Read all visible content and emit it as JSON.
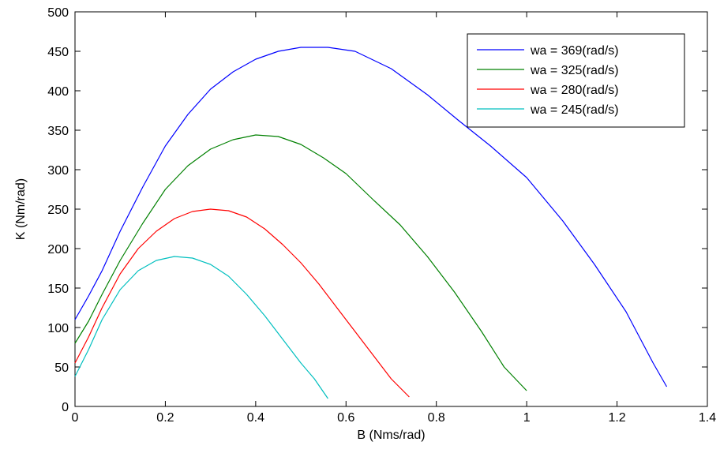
{
  "chart_data": {
    "type": "line",
    "title": "",
    "xlabel": "B (Nms/rad)",
    "ylabel": "K (Nm/rad)",
    "xlim": [
      0,
      1.4
    ],
    "ylim": [
      0,
      500
    ],
    "xticks": [
      0,
      0.2,
      0.4,
      0.6,
      0.8,
      1,
      1.2,
      1.4
    ],
    "xtick_labels": [
      "0",
      "0.2",
      "0.4",
      "0.6",
      "0.8",
      "1",
      "1.2",
      "1.4"
    ],
    "yticks": [
      0,
      50,
      100,
      150,
      200,
      250,
      300,
      350,
      400,
      450,
      500
    ],
    "ytick_labels": [
      "0",
      "50",
      "100",
      "150",
      "200",
      "250",
      "300",
      "350",
      "400",
      "450",
      "500"
    ],
    "grid": false,
    "legend_position": "top-right",
    "series": [
      {
        "name": "wa = 369(rad/s)",
        "color": "#0000ff",
        "x": [
          0.0,
          0.03,
          0.06,
          0.1,
          0.15,
          0.2,
          0.25,
          0.3,
          0.35,
          0.4,
          0.45,
          0.5,
          0.56,
          0.62,
          0.7,
          0.78,
          0.85,
          0.92,
          1.0,
          1.08,
          1.15,
          1.22,
          1.28,
          1.31
        ],
        "y": [
          110,
          140,
          172,
          222,
          278,
          330,
          370,
          402,
          424,
          440,
          450,
          455,
          455,
          450,
          428,
          395,
          362,
          330,
          290,
          235,
          180,
          120,
          55,
          25
        ]
      },
      {
        "name": "wa = 325(rad/s)",
        "color": "#008000",
        "x": [
          0.0,
          0.03,
          0.06,
          0.1,
          0.15,
          0.2,
          0.25,
          0.3,
          0.35,
          0.4,
          0.45,
          0.5,
          0.55,
          0.6,
          0.66,
          0.72,
          0.78,
          0.84,
          0.9,
          0.95,
          1.0
        ],
        "y": [
          80,
          108,
          142,
          185,
          232,
          275,
          305,
          326,
          338,
          344,
          342,
          332,
          315,
          295,
          262,
          230,
          190,
          145,
          95,
          50,
          20
        ]
      },
      {
        "name": "wa = 280(rad/s)",
        "color": "#ff0000",
        "x": [
          0.0,
          0.03,
          0.06,
          0.1,
          0.14,
          0.18,
          0.22,
          0.26,
          0.3,
          0.34,
          0.38,
          0.42,
          0.46,
          0.5,
          0.54,
          0.58,
          0.62,
          0.66,
          0.7,
          0.74
        ],
        "y": [
          55,
          88,
          125,
          168,
          200,
          222,
          238,
          247,
          250,
          248,
          240,
          225,
          205,
          182,
          155,
          125,
          95,
          65,
          35,
          12
        ]
      },
      {
        "name": "wa = 245(rad/s)",
        "color": "#00bfbf",
        "x": [
          0.0,
          0.03,
          0.06,
          0.1,
          0.14,
          0.18,
          0.22,
          0.26,
          0.3,
          0.34,
          0.38,
          0.42,
          0.46,
          0.5,
          0.53,
          0.56
        ],
        "y": [
          38,
          72,
          110,
          148,
          172,
          185,
          190,
          188,
          180,
          165,
          142,
          115,
          85,
          55,
          35,
          10
        ]
      }
    ]
  }
}
